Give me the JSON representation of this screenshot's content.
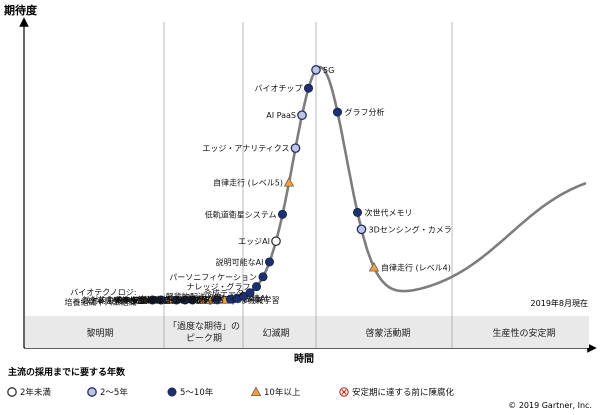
{
  "chart_data": {
    "type": "scatter",
    "ylabel": "期待度",
    "xlabel": "時間",
    "as_of": "2019年8月現在",
    "phases": [
      "黎明期",
      "「過度な期待」の\nピーク期",
      "幻滅期",
      "啓蒙活動期",
      "生産性の安定期"
    ],
    "legend_title": "主流の採用までに要する年数",
    "legend": [
      {
        "key": "lt2",
        "label": "2年未満"
      },
      {
        "key": "2to5",
        "label": "2～5年"
      },
      {
        "key": "5to10",
        "label": "5～10年"
      },
      {
        "key": "gt10",
        "label": "10年以上"
      },
      {
        "key": "obsolete",
        "label": "安定期に達する前に陳腐化"
      }
    ],
    "copyright": "© 2019 Gartner, Inc.",
    "colors": {
      "curve": "#777777",
      "five_to_ten": "#1c2f6e",
      "gt10": "#f3a03a",
      "obsolete": "#c0392b",
      "axis": "#000000"
    },
    "points": [
      {
        "label": "バイオテクノロジ:\n培養組織や人工組織",
        "cat": "gt10",
        "t": 0.115,
        "side": "left"
      },
      {
        "label": "イマーシブ・ワークスペース",
        "cat": "5to10",
        "t": 0.135,
        "side": "right"
      },
      {
        "label": "ARクラウド",
        "cat": "5to10",
        "t": 0.152,
        "side": "left"
      },
      {
        "label": "非中央集権型Web",
        "cat": "gt10",
        "t": 0.168,
        "side": "left"
      },
      {
        "label": "敵対的生成ネットワーク",
        "cat": "5to10",
        "t": 0.183,
        "side": "left"
      },
      {
        "label": "アダプティブな機械学習",
        "cat": "5to10",
        "t": 0.2,
        "side": "right"
      },
      {
        "label": "DigitalOps",
        "cat": "5to10",
        "t": 0.215,
        "side": "right"
      },
      {
        "label": "非中央集権型自律組織",
        "cat": "gt10",
        "t": 0.232,
        "side": "left"
      },
      {
        "label": "ナノスケール3Dプリンティング",
        "cat": "gt10",
        "t": 0.25,
        "side": "left"
      },
      {
        "label": "拡張インテリジェンス",
        "cat": "5to10",
        "t": 0.265,
        "side": "left"
      },
      {
        "label": "自律型航空機/空飛ぶ車",
        "cat": "gt10",
        "t": 0.278,
        "side": "left"
      },
      {
        "label": "転移学習",
        "cat": "5to10",
        "t": 0.291,
        "side": "left"
      },
      {
        "label": "感情AI",
        "cat": "5to10",
        "t": 0.304,
        "side": "right"
      },
      {
        "label": "軽貨物配送ドローン",
        "cat": "5to10",
        "t": 0.317,
        "side": "left"
      },
      {
        "label": "合成データ",
        "cat": "5to10",
        "t": 0.33,
        "side": "left"
      },
      {
        "label": "ナレッジ・グラフ",
        "cat": "5to10",
        "t": 0.343,
        "side": "left"
      },
      {
        "label": "パーソニフィケーション",
        "cat": "5to10",
        "t": 0.356,
        "side": "left"
      },
      {
        "label": "説明可能なAI",
        "cat": "5to10",
        "t": 0.369,
        "side": "left"
      },
      {
        "label": "エッジAI",
        "cat": "lt2",
        "t": 0.382,
        "side": "left"
      },
      {
        "label": "低軌道衛星システム",
        "cat": "5to10",
        "t": 0.395,
        "side": "left"
      },
      {
        "label": "自律走行 (レベル5)",
        "cat": "gt10",
        "t": 0.408,
        "side": "left"
      },
      {
        "label": "エッジ・アナリティクス",
        "cat": "2to5",
        "t": 0.421,
        "side": "left"
      },
      {
        "label": "AI PaaS",
        "cat": "2to5",
        "t": 0.434,
        "side": "left"
      },
      {
        "label": "バイオチップ",
        "cat": "5to10",
        "t": 0.447,
        "side": "left"
      },
      {
        "label": "5G",
        "cat": "2to5",
        "t": 0.462,
        "side": "right"
      },
      {
        "label": "グラフ分析",
        "cat": "5to10",
        "t": 0.505,
        "side": "right"
      },
      {
        "label": "次世代メモリ",
        "cat": "5to10",
        "t": 0.545,
        "side": "right"
      },
      {
        "label": "3Dセンシング・カメラ",
        "cat": "2to5",
        "t": 0.553,
        "side": "right"
      },
      {
        "label": "自律走行 (レベル4)",
        "cat": "gt10",
        "t": 0.578,
        "side": "right"
      }
    ]
  }
}
